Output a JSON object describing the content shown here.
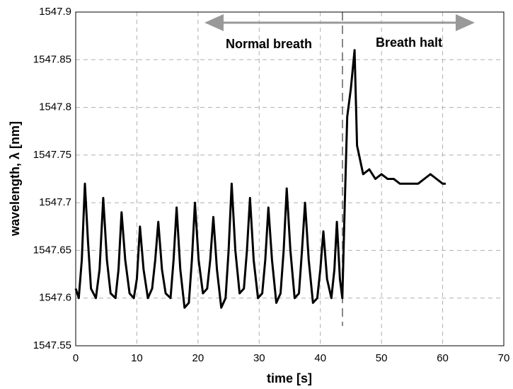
{
  "chart_data": {
    "type": "line",
    "xlabel": "time [s]",
    "ylabel": "wavelength, λ [nm]",
    "annotations": [
      "Normal breath",
      "Breath halt"
    ],
    "xlim": [
      0,
      70
    ],
    "xticks": [
      0,
      10,
      20,
      30,
      40,
      50,
      60,
      70
    ],
    "ylim": [
      1547.55,
      1547.9
    ],
    "yticks": [
      1547.55,
      1547.6,
      1547.65,
      1547.7,
      1547.75,
      1547.8,
      1547.85,
      1547.9
    ],
    "grid": true,
    "series": [
      {
        "color": "#000000",
        "x": [
          0,
          0.5,
          1,
          1.5,
          2,
          2.5,
          3.3,
          3.9,
          4.5,
          5.1,
          5.7,
          6.5,
          7,
          7.5,
          8.1,
          8.8,
          9.5,
          10,
          10.5,
          11.1,
          11.8,
          12.5,
          13,
          13.5,
          14.1,
          14.7,
          15.5,
          16,
          16.5,
          17.1,
          17.8,
          18.5,
          19,
          19.5,
          20.1,
          20.8,
          21.5,
          22,
          22.5,
          23.1,
          23.8,
          24.5,
          25,
          25.5,
          26.1,
          26.8,
          27.5,
          28,
          28.5,
          29.1,
          29.8,
          30.5,
          31,
          31.5,
          32.1,
          32.8,
          33.5,
          34,
          34.5,
          35.1,
          35.8,
          36.5,
          37,
          37.5,
          38.1,
          38.8,
          39.5,
          40,
          40.5,
          41.1,
          41.8,
          42.3,
          42.7,
          43.2,
          43.6,
          44,
          44.4,
          45,
          45.6,
          46,
          46.5,
          47,
          48,
          49,
          50,
          51,
          52,
          53,
          54,
          55,
          56,
          57,
          58,
          59,
          60,
          60.5
        ],
        "values": [
          1547.61,
          1547.6,
          1547.64,
          1547.72,
          1547.66,
          1547.61,
          1547.6,
          1547.63,
          1547.705,
          1547.64,
          1547.605,
          1547.6,
          1547.63,
          1547.69,
          1547.64,
          1547.605,
          1547.6,
          1547.62,
          1547.675,
          1547.63,
          1547.6,
          1547.61,
          1547.64,
          1547.68,
          1547.63,
          1547.605,
          1547.6,
          1547.64,
          1547.695,
          1547.63,
          1547.59,
          1547.595,
          1547.64,
          1547.7,
          1547.64,
          1547.605,
          1547.61,
          1547.64,
          1547.685,
          1547.63,
          1547.59,
          1547.6,
          1547.65,
          1547.72,
          1547.65,
          1547.605,
          1547.61,
          1547.65,
          1547.705,
          1547.64,
          1547.6,
          1547.605,
          1547.64,
          1547.695,
          1547.64,
          1547.595,
          1547.605,
          1547.65,
          1547.715,
          1547.65,
          1547.6,
          1547.605,
          1547.65,
          1547.7,
          1547.64,
          1547.595,
          1547.6,
          1547.63,
          1547.67,
          1547.62,
          1547.6,
          1547.63,
          1547.68,
          1547.62,
          1547.6,
          1547.7,
          1547.79,
          1547.82,
          1547.86,
          1547.76,
          1547.745,
          1547.73,
          1547.735,
          1547.725,
          1547.73,
          1547.725,
          1547.725,
          1547.72,
          1547.72,
          1547.72,
          1547.72,
          1547.725,
          1547.73,
          1547.725,
          1547.72,
          1547.72
        ]
      }
    ]
  }
}
